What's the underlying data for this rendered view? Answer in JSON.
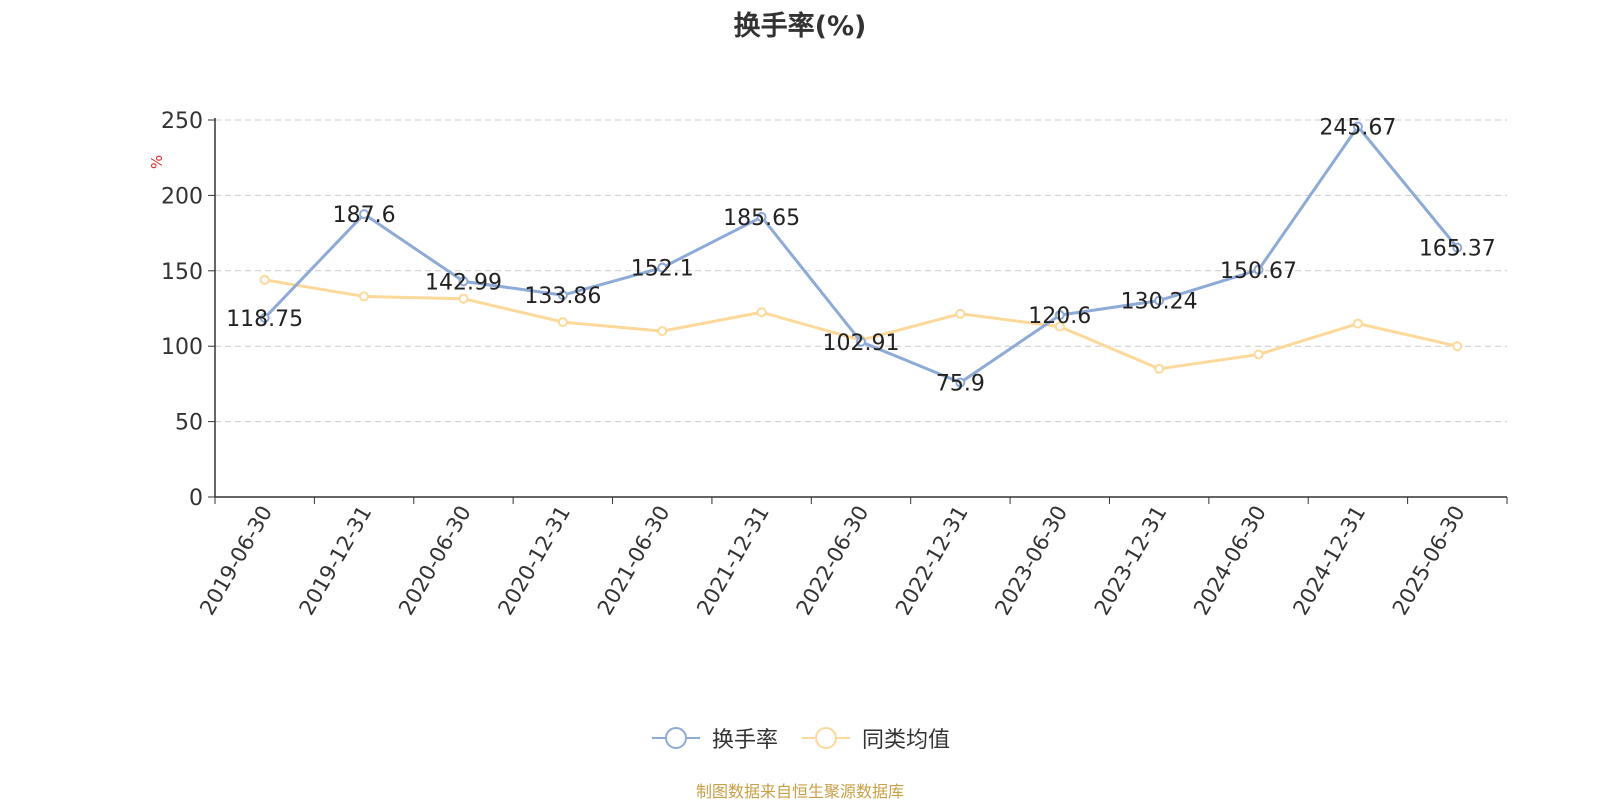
{
  "chart_data": {
    "type": "line",
    "title": "换手率(%)",
    "ylabel": "%",
    "xlabel": "",
    "ylim": [
      0,
      250
    ],
    "yticks": [
      0,
      50,
      100,
      150,
      200,
      250
    ],
    "grid": true,
    "legend_position": "bottom",
    "categories": [
      "2019-06-30",
      "2019-12-31",
      "2020-06-30",
      "2020-12-31",
      "2021-06-30",
      "2021-12-31",
      "2022-06-30",
      "2022-12-31",
      "2023-06-30",
      "2023-12-31",
      "2024-06-30",
      "2024-12-31",
      "2025-06-30"
    ],
    "series": [
      {
        "name": "换手率",
        "color": "#8eaad6",
        "values": [
          118.75,
          187.6,
          142.99,
          133.86,
          152.1,
          185.65,
          102.91,
          75.9,
          120.6,
          130.24,
          150.67,
          245.67,
          165.37
        ],
        "labels": [
          "118.75",
          "187.6",
          "142.99",
          "133.86",
          "152.1",
          "185.65",
          "102.91",
          "75.9",
          "120.6",
          "130.24",
          "150.67",
          "245.67",
          "165.37"
        ]
      },
      {
        "name": "同类均值",
        "color": "#fcd99a",
        "values": [
          144,
          133,
          131.5,
          116,
          110,
          122.5,
          104,
          121.5,
          113,
          85,
          94.5,
          115,
          100
        ]
      }
    ]
  },
  "source_note": "制图数据来自恒生聚源数据库"
}
